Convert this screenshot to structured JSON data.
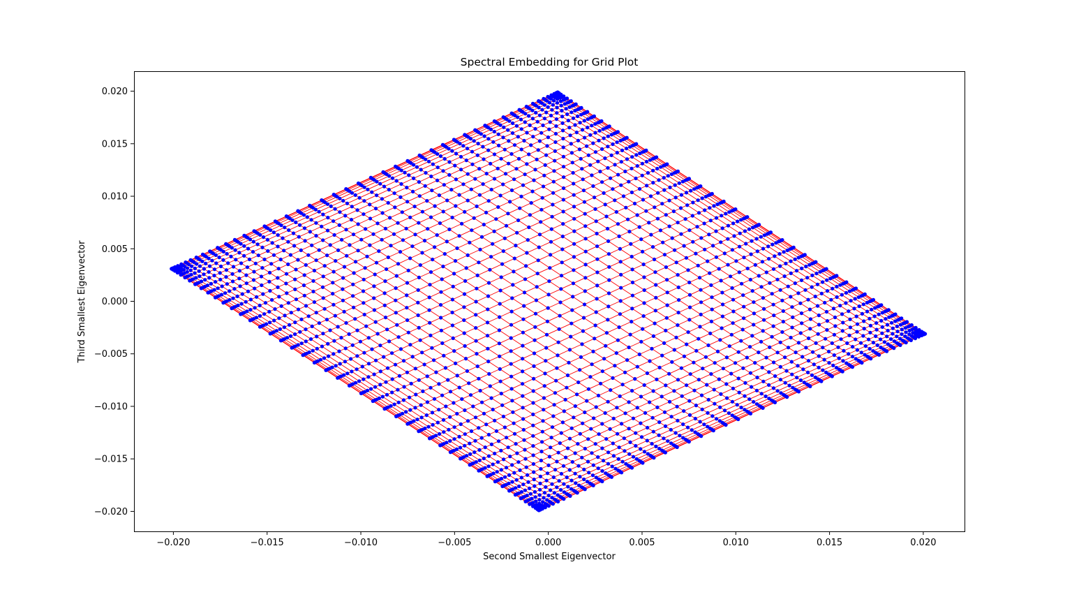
{
  "chart_data": {
    "type": "scatter",
    "title": "Spectral Embedding for Grid Plot",
    "xlabel": "Second Smallest Eigenvector",
    "ylabel": "Third Smallest Eigenvector",
    "xlim": [
      -0.0221,
      0.0222
    ],
    "ylim": [
      -0.0219,
      0.0219
    ],
    "xticks": [
      -0.02,
      -0.015,
      -0.01,
      -0.005,
      0.0,
      0.005,
      0.01,
      0.015,
      0.02
    ],
    "xtick_labels": [
      "−0.020",
      "−0.015",
      "−0.010",
      "−0.005",
      "0.000",
      "0.005",
      "0.010",
      "0.015",
      "0.020"
    ],
    "yticks": [
      -0.02,
      -0.015,
      -0.01,
      -0.005,
      0.0,
      0.005,
      0.01,
      0.015,
      0.02
    ],
    "ytick_labels": [
      "−0.020",
      "−0.015",
      "−0.010",
      "−0.005",
      "0.000",
      "0.005",
      "0.010",
      "0.015",
      "0.020"
    ],
    "grid": false,
    "corners": {
      "top": [
        0.0005,
        0.0199
      ],
      "left": [
        -0.0201,
        0.0031
      ],
      "bottom": [
        -0.0005,
        -0.0199
      ],
      "right": [
        0.0201,
        -0.0031
      ]
    },
    "grid_size": 50,
    "series": [
      {
        "kind": "points",
        "color": "#0000ff"
      },
      {
        "kind": "edges",
        "color": "#ff0000"
      }
    ]
  }
}
